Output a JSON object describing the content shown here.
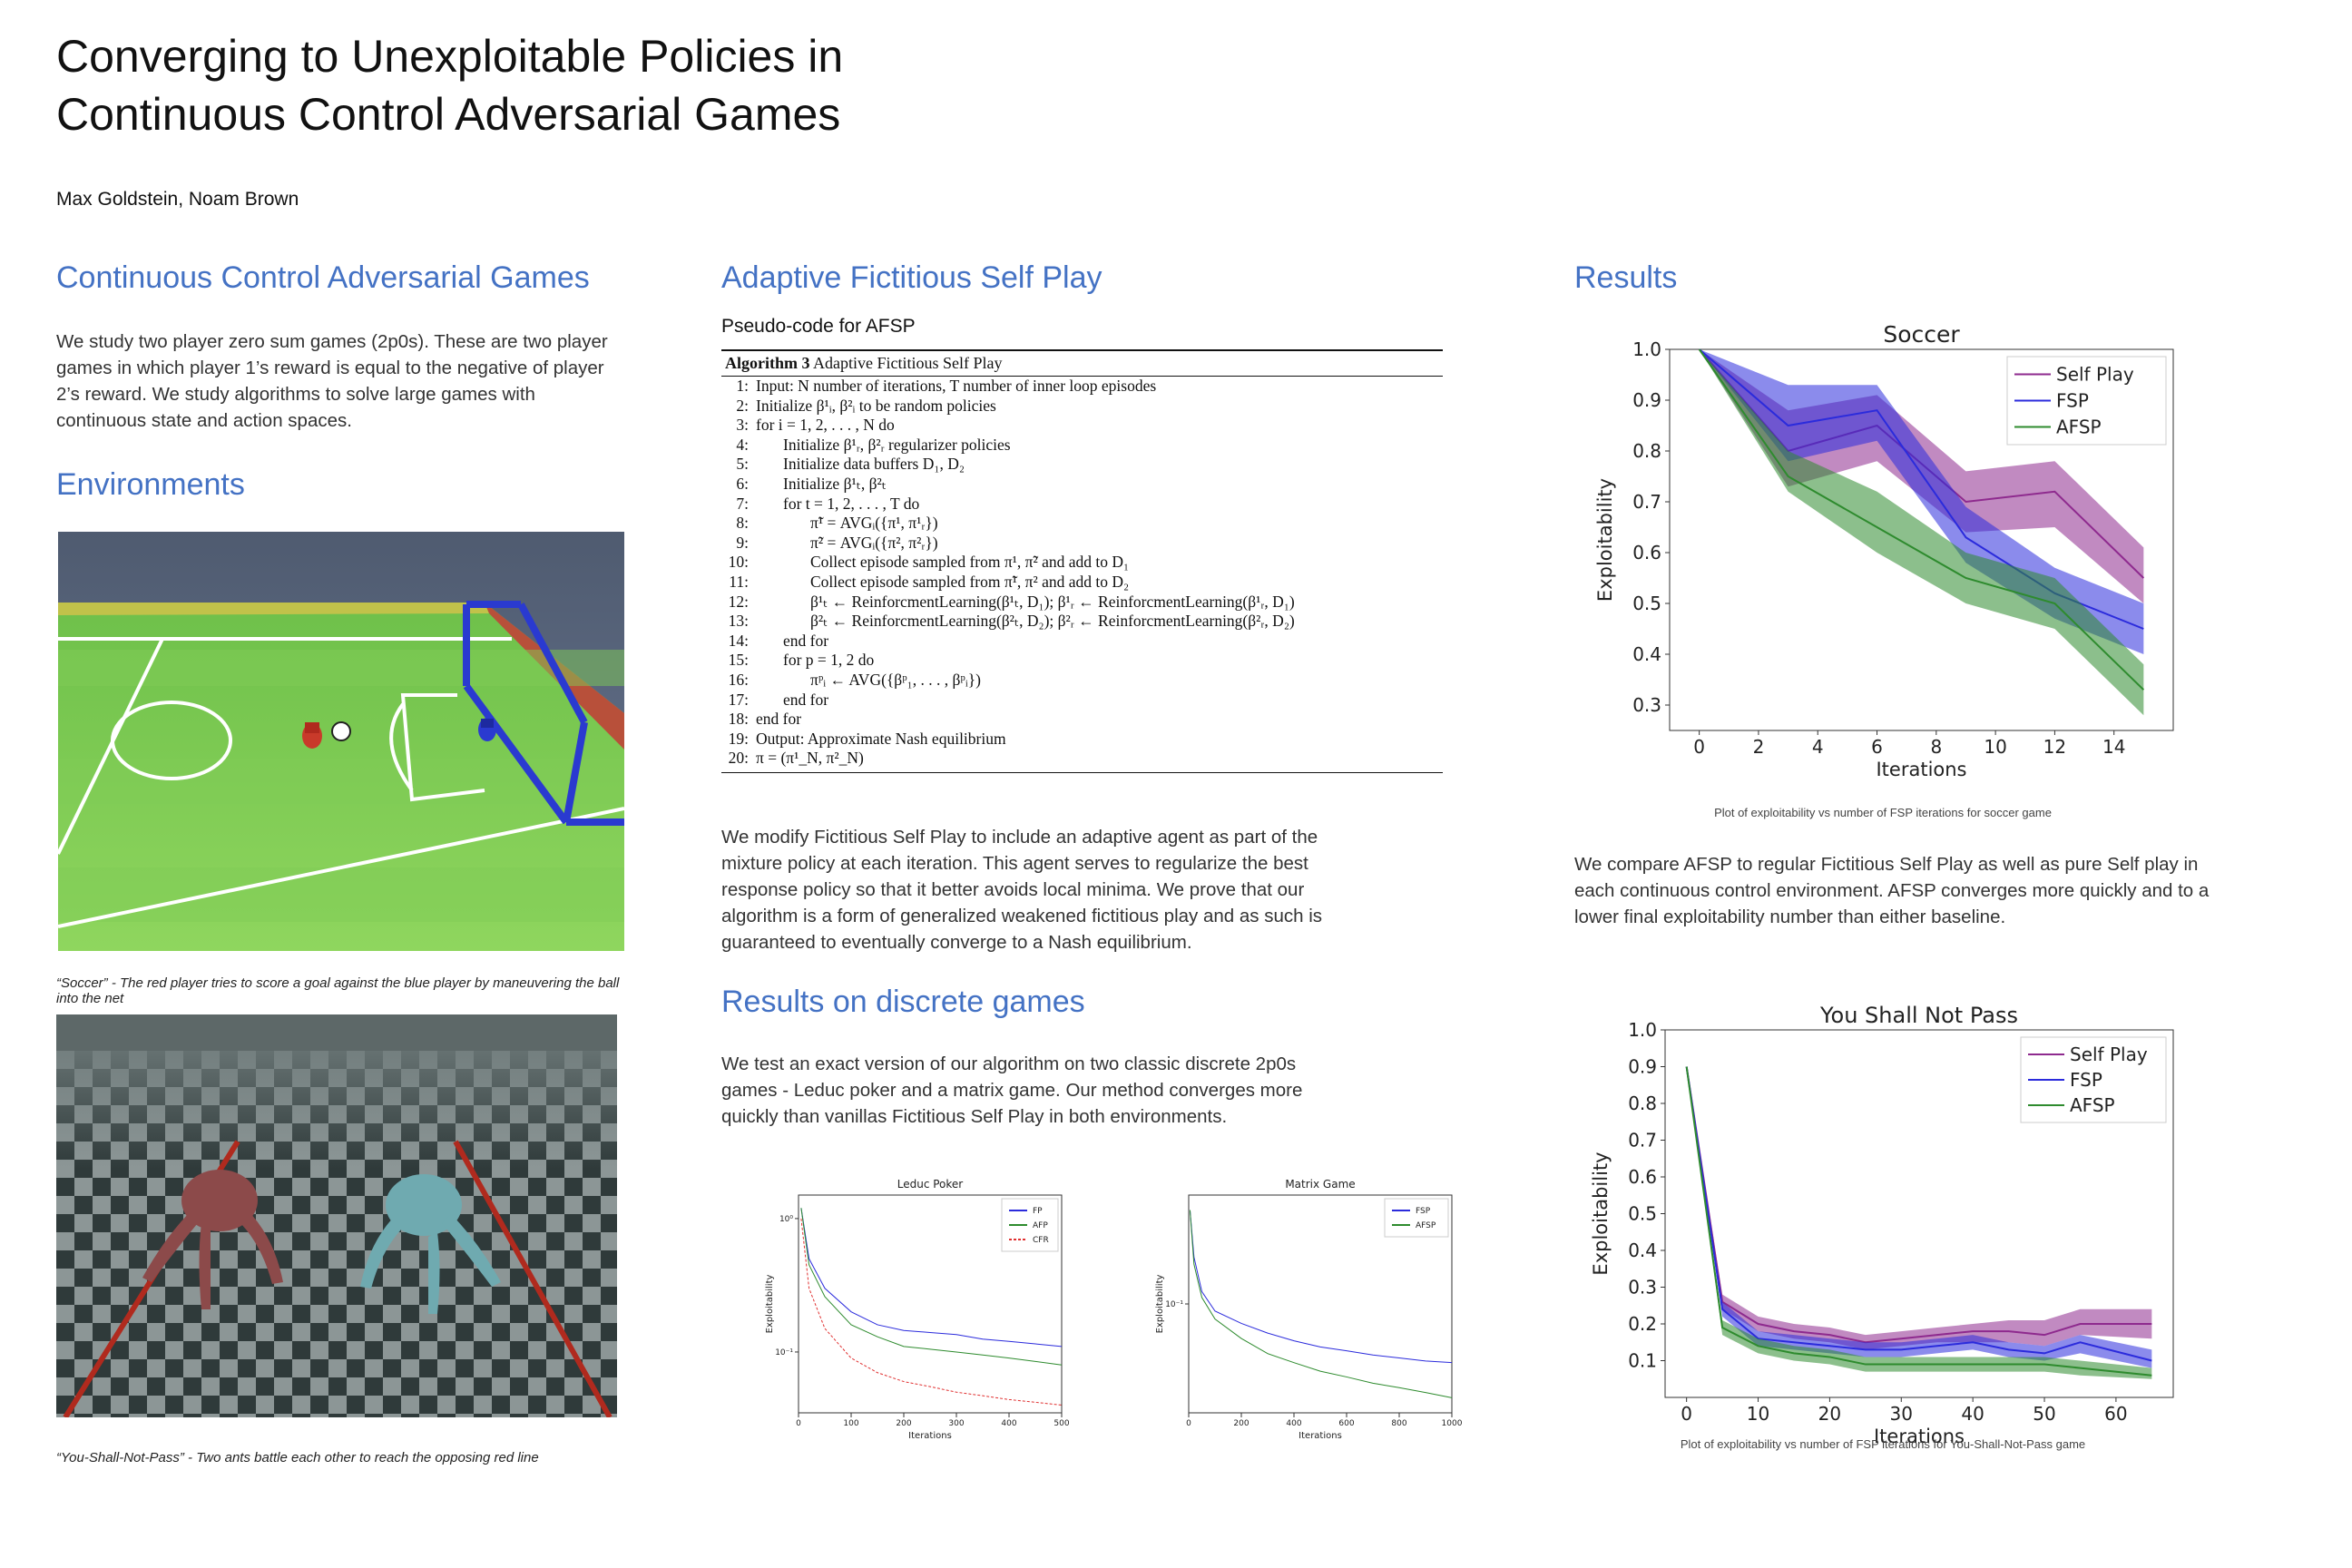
{
  "title_line1": "Converging to Unexploitable Policies in",
  "title_line2": "Continuous Control Adversarial Games",
  "authors": "Max Goldstein, Noam Brown",
  "col1": {
    "heading": "Continuous Control Adversarial Games",
    "para": "We study two player zero sum games (2p0s). These are two player games in which player 1’s reward is equal to the negative of player 2’s reward. We study algorithms to solve large games with continuous state and action spaces.",
    "env_heading": "Environments",
    "soccer_caption": "“Soccer” - The red player tries to score a goal against the blue player by maneuvering the ball into the net",
    "ysnp_caption": "“You-Shall-Not-Pass” - Two ants battle each other to reach the opposing red line"
  },
  "col2": {
    "heading": "Adaptive Fictitious Self Play",
    "pseudo_label": "Pseudo-code for AFSP",
    "algo_title_bold": "Algorithm 3",
    "algo_title": " Adaptive Fictitious Self Play",
    "algo_lines": [
      {
        "n": "1:",
        "t": "Input: N number of iterations, T number of inner loop episodes",
        "ind": 0
      },
      {
        "n": "2:",
        "t": "Initialize β¹ᵢ, β²ᵢ to be random policies",
        "ind": 0
      },
      {
        "n": "3:",
        "t": "for i = 1, 2, . . . , N do",
        "ind": 0
      },
      {
        "n": "4:",
        "t": "Initialize β¹ᵣ, β²ᵣ regularizer policies",
        "ind": 1
      },
      {
        "n": "5:",
        "t": "Initialize data buffers D₁, D₂",
        "ind": 1
      },
      {
        "n": "6:",
        "t": "Initialize β¹ₜ, β²ₜ",
        "ind": 1
      },
      {
        "n": "7:",
        "t": "for t = 1, 2, . . . , T do",
        "ind": 1
      },
      {
        "n": "8:",
        "t": "π̃¹ = AVGᵢ({π¹, π¹ᵣ})",
        "ind": 2
      },
      {
        "n": "9:",
        "t": "π̃² = AVGᵢ({π², π²ᵣ})",
        "ind": 2
      },
      {
        "n": "10:",
        "t": "Collect episode sampled from π¹, π̃² and add to D₁",
        "ind": 2
      },
      {
        "n": "11:",
        "t": "Collect episode sampled from π̃¹, π² and add to D₂",
        "ind": 2
      },
      {
        "n": "12:",
        "t": "β¹ₜ ← ReinforcmentLearning(β¹ₜ, D₁); β¹ᵣ ← ReinforcmentLearning(β¹ᵣ, D₁)",
        "ind": 2
      },
      {
        "n": "13:",
        "t": "β²ₜ ← ReinforcmentLearning(β²ₜ, D₂); β²ᵣ ← ReinforcmentLearning(β²ᵣ, D₂)",
        "ind": 2
      },
      {
        "n": "14:",
        "t": "end for",
        "ind": 1
      },
      {
        "n": "15:",
        "t": "for p = 1, 2 do",
        "ind": 1
      },
      {
        "n": "16:",
        "t": "πᵖᵢ ← AVG({βᵖ₁, . . . , βᵖᵢ})",
        "ind": 2
      },
      {
        "n": "17:",
        "t": "end for",
        "ind": 1
      },
      {
        "n": "18:",
        "t": "end for",
        "ind": 0
      },
      {
        "n": "19:",
        "t": "Output: Approximate Nash equilibrium",
        "ind": 0
      },
      {
        "n": "20:",
        "t": "π = (π¹_N, π²_N)",
        "ind": 0
      }
    ],
    "para": "We modify Fictitious Self Play to include an adaptive agent as part of the mixture policy at each iteration. This agent serves to regularize the best response policy so that it better avoids local minima. We prove that our algorithm is a form of generalized weakened fictitious play and as such is guaranteed to eventually converge to a Nash equilibrium.",
    "discrete_heading": "Results on discrete games",
    "discrete_para": "We test an exact version of our algorithm on two classic discrete 2p0s games - Leduc poker and a matrix game. Our method converges more quickly than vanillas Fictitious Self Play in both environments."
  },
  "col3": {
    "heading": "Results",
    "soccer_caption": "Plot of exploitability vs number of FSP iterations for soccer game",
    "para": "We compare AFSP to regular Fictitious Self Play as well as pure Self play in each continuous control environment. AFSP converges more quickly and to a lower final exploitability number than either baseline.",
    "ysnp_caption": "Plot of exploitability vs number of FSP iterations for You-Shall-Not-Pass game"
  },
  "colors": {
    "selfplay": "#8e2a8e",
    "fsp": "#2b2bdc",
    "afsp": "#2e8b2e",
    "heading": "#4472c4",
    "cfr": "#e03030"
  },
  "chart_data": [
    {
      "type": "line",
      "title": "Soccer",
      "xlabel": "Iterations",
      "ylabel": "Exploitability",
      "xlim": [
        -1,
        16
      ],
      "ylim": [
        0.25,
        1.0
      ],
      "xticks": [
        0,
        2,
        4,
        6,
        8,
        10,
        12,
        14
      ],
      "yticks": [
        0.3,
        0.4,
        0.5,
        0.6,
        0.7,
        0.8,
        0.9,
        1.0
      ],
      "x": [
        0,
        3,
        6,
        9,
        12,
        15
      ],
      "series": [
        {
          "name": "Self Play",
          "values": [
            1.0,
            0.8,
            0.85,
            0.7,
            0.72,
            0.55
          ],
          "low": [
            1.0,
            0.73,
            0.78,
            0.64,
            0.65,
            0.5
          ],
          "high": [
            1.0,
            0.88,
            0.91,
            0.76,
            0.78,
            0.61
          ]
        },
        {
          "name": "FSP",
          "values": [
            1.0,
            0.85,
            0.88,
            0.63,
            0.52,
            0.45
          ],
          "low": [
            1.0,
            0.78,
            0.82,
            0.58,
            0.47,
            0.4
          ],
          "high": [
            1.0,
            0.93,
            0.93,
            0.69,
            0.57,
            0.5
          ]
        },
        {
          "name": "AFSP",
          "values": [
            1.0,
            0.75,
            0.65,
            0.55,
            0.5,
            0.33
          ],
          "low": [
            1.0,
            0.72,
            0.6,
            0.5,
            0.45,
            0.28
          ],
          "high": [
            1.0,
            0.8,
            0.72,
            0.6,
            0.55,
            0.38
          ]
        }
      ]
    },
    {
      "type": "line",
      "title": "You Shall Not Pass",
      "xlabel": "Iterations",
      "ylabel": "Exploitability",
      "xlim": [
        -3,
        68
      ],
      "ylim": [
        0.0,
        1.0
      ],
      "xticks": [
        0,
        10,
        20,
        30,
        40,
        50,
        60
      ],
      "yticks": [
        0.1,
        0.2,
        0.3,
        0.4,
        0.5,
        0.6,
        0.7,
        0.8,
        0.9,
        1.0
      ],
      "x": [
        0,
        5,
        10,
        15,
        20,
        25,
        30,
        35,
        40,
        45,
        50,
        55,
        65
      ],
      "series": [
        {
          "name": "Self Play",
          "values": [
            0.9,
            0.26,
            0.2,
            0.18,
            0.17,
            0.15,
            0.16,
            0.17,
            0.18,
            0.18,
            0.17,
            0.2,
            0.2
          ],
          "low": [
            0.9,
            0.24,
            0.18,
            0.16,
            0.15,
            0.13,
            0.14,
            0.15,
            0.15,
            0.15,
            0.14,
            0.17,
            0.16
          ],
          "high": [
            0.9,
            0.28,
            0.22,
            0.2,
            0.19,
            0.17,
            0.18,
            0.19,
            0.2,
            0.21,
            0.21,
            0.24,
            0.24
          ]
        },
        {
          "name": "FSP",
          "values": [
            0.9,
            0.24,
            0.16,
            0.15,
            0.14,
            0.13,
            0.13,
            0.14,
            0.15,
            0.13,
            0.12,
            0.15,
            0.1
          ],
          "low": [
            0.9,
            0.22,
            0.14,
            0.13,
            0.12,
            0.11,
            0.11,
            0.12,
            0.13,
            0.11,
            0.1,
            0.12,
            0.08
          ],
          "high": [
            0.9,
            0.26,
            0.18,
            0.17,
            0.16,
            0.15,
            0.15,
            0.16,
            0.17,
            0.15,
            0.14,
            0.17,
            0.13
          ]
        },
        {
          "name": "AFSP",
          "values": [
            0.9,
            0.19,
            0.14,
            0.12,
            0.11,
            0.09,
            0.09,
            0.09,
            0.09,
            0.09,
            0.09,
            0.08,
            0.06
          ],
          "low": [
            0.9,
            0.17,
            0.12,
            0.1,
            0.09,
            0.07,
            0.07,
            0.07,
            0.07,
            0.07,
            0.07,
            0.06,
            0.05
          ],
          "high": [
            0.9,
            0.21,
            0.16,
            0.14,
            0.13,
            0.11,
            0.11,
            0.11,
            0.11,
            0.11,
            0.11,
            0.1,
            0.08
          ]
        }
      ]
    },
    {
      "type": "line",
      "title": "Leduc Poker",
      "xlabel": "Iterations",
      "ylabel": "Exploitability",
      "log_y": true,
      "xlim": [
        0,
        500
      ],
      "ylim": [
        0.035,
        1.5
      ],
      "xticks": [
        0,
        100,
        200,
        300,
        400,
        500
      ],
      "ytick_labels": [
        "10⁰",
        "10⁻¹"
      ],
      "ytick_values": [
        1.0,
        0.1
      ],
      "x": [
        5,
        20,
        50,
        100,
        150,
        200,
        250,
        300,
        350,
        400,
        450,
        500
      ],
      "series": [
        {
          "name": "FP",
          "values": [
            1.2,
            0.5,
            0.3,
            0.2,
            0.16,
            0.145,
            0.14,
            0.135,
            0.125,
            0.12,
            0.115,
            0.11
          ]
        },
        {
          "name": "AFP",
          "values": [
            1.2,
            0.45,
            0.26,
            0.16,
            0.13,
            0.11,
            0.105,
            0.1,
            0.095,
            0.09,
            0.085,
            0.08
          ]
        },
        {
          "name": "CFR",
          "values": [
            1.0,
            0.3,
            0.15,
            0.09,
            0.07,
            0.06,
            0.055,
            0.05,
            0.047,
            0.044,
            0.042,
            0.04
          ]
        }
      ]
    },
    {
      "type": "line",
      "title": "Matrix Game",
      "xlabel": "Iterations",
      "ylabel": "Exploitability",
      "log_y": true,
      "xlim": [
        0,
        1000
      ],
      "ylim": [
        0.02,
        0.5
      ],
      "xticks": [
        0,
        200,
        400,
        600,
        800,
        1000
      ],
      "ytick_labels": [
        "10⁻¹"
      ],
      "ytick_values": [
        0.1
      ],
      "x": [
        5,
        20,
        50,
        100,
        200,
        300,
        400,
        500,
        600,
        700,
        800,
        900,
        1000
      ],
      "series": [
        {
          "name": "FSP",
          "values": [
            0.4,
            0.2,
            0.12,
            0.09,
            0.075,
            0.065,
            0.058,
            0.053,
            0.05,
            0.047,
            0.045,
            0.043,
            0.042
          ]
        },
        {
          "name": "AFSP",
          "values": [
            0.4,
            0.18,
            0.11,
            0.08,
            0.06,
            0.048,
            0.042,
            0.037,
            0.034,
            0.031,
            0.029,
            0.027,
            0.025
          ]
        }
      ]
    }
  ]
}
